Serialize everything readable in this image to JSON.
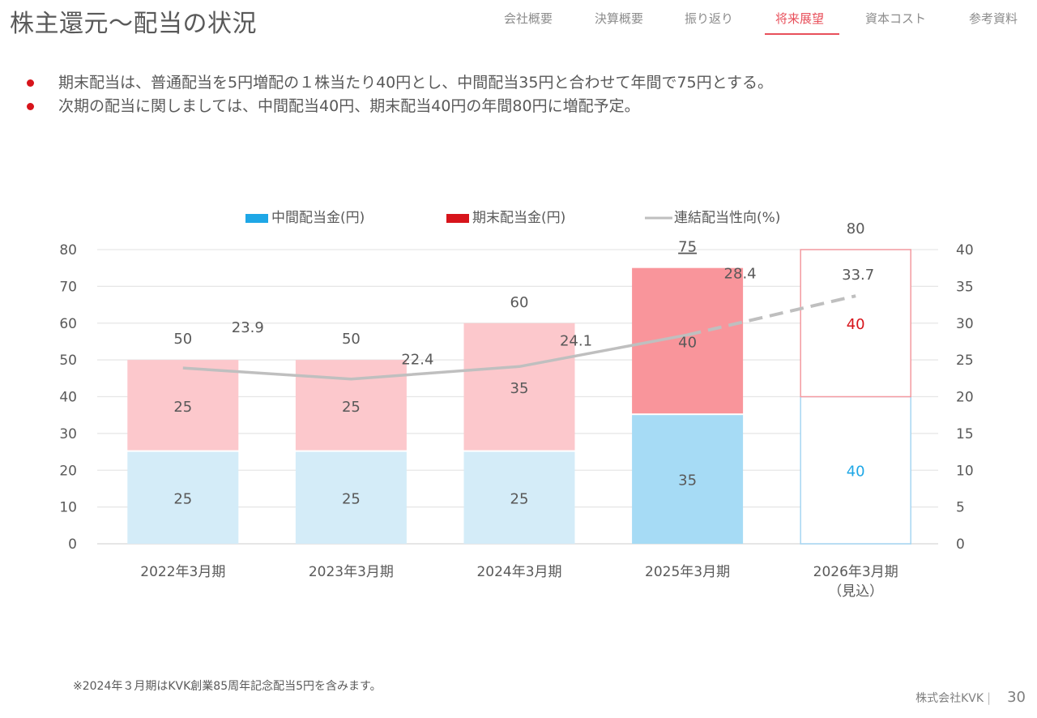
{
  "header": {
    "title": "株主還元〜配当の状況"
  },
  "nav": {
    "items": [
      {
        "label": "会社概要",
        "active": false
      },
      {
        "label": "決算概要",
        "active": false
      },
      {
        "label": "振り返り",
        "active": false
      },
      {
        "label": "将来展望",
        "active": true
      },
      {
        "label": "資本コスト",
        "active": false
      },
      {
        "label": "参考資料",
        "active": false
      }
    ]
  },
  "bullets": [
    "期末配当は、普通配当を5円増配の１株当たり40円とし、中間配当35円と合わせて年間で75円とする。",
    "次期の配当に関しましては、中間配当40円、期末配当40円の年間80円に増配予定。"
  ],
  "colors": {
    "accent": "#e8505b",
    "bullet": "#d7141b",
    "interim_legend": "#1ea7e6",
    "yearend_legend": "#d7141b",
    "interim_past": "#d4ecf8",
    "interim_2025": "#a6dbf5",
    "yearend_past": "#fcc8cc",
    "yearend_2025": "#f9959b",
    "forecast_interim_border": "#a6d6f2",
    "forecast_yearend_border": "#f49aa0",
    "forecast_interim_label": "#1ea7e6",
    "forecast_yearend_label": "#d7141b",
    "payout_line": "#bfbfbf",
    "grid": "#e6e6e6",
    "text": "#595959"
  },
  "chart_data": {
    "type": "bar",
    "stacked": true,
    "title": "",
    "categories": [
      "2022年3月期",
      "2023年3月期",
      "2024年3月期",
      "2025年3月期",
      "2026年3月期"
    ],
    "category_sublabels": [
      "",
      "",
      "",
      "",
      "（見込）"
    ],
    "series": [
      {
        "name": "中間配当金(円)",
        "axis": "left",
        "values": [
          25,
          25,
          25,
          35,
          40
        ]
      },
      {
        "name": "期末配当金(円)",
        "axis": "left",
        "values": [
          25,
          25,
          35,
          40,
          40
        ]
      },
      {
        "name": "連結配当性向(%)",
        "axis": "right",
        "type": "line",
        "values": [
          23.9,
          22.4,
          24.1,
          28.4,
          33.7
        ],
        "dashed_from_index": 3
      }
    ],
    "totals": [
      50,
      50,
      60,
      75,
      80
    ],
    "totals_labels": [
      "50",
      "50",
      "60",
      "75",
      "80"
    ],
    "total_underlined_index": 3,
    "forecast_index": 4,
    "left_axis": {
      "ylim": [
        0,
        80
      ],
      "ticks": [
        0,
        10,
        20,
        30,
        40,
        50,
        60,
        70,
        80
      ]
    },
    "right_axis": {
      "ylim": [
        0,
        40
      ],
      "ticks": [
        0,
        5,
        10,
        15,
        20,
        25,
        30,
        35,
        40
      ]
    },
    "grid": true,
    "legend_position": "top",
    "xlabel": "",
    "ylabel": ""
  },
  "footnote": "※2024年３月期はKVK創業85周年記念配当5円を含みます。",
  "footer": {
    "company": "株式会社KVK",
    "separator": "|",
    "page": "30"
  }
}
